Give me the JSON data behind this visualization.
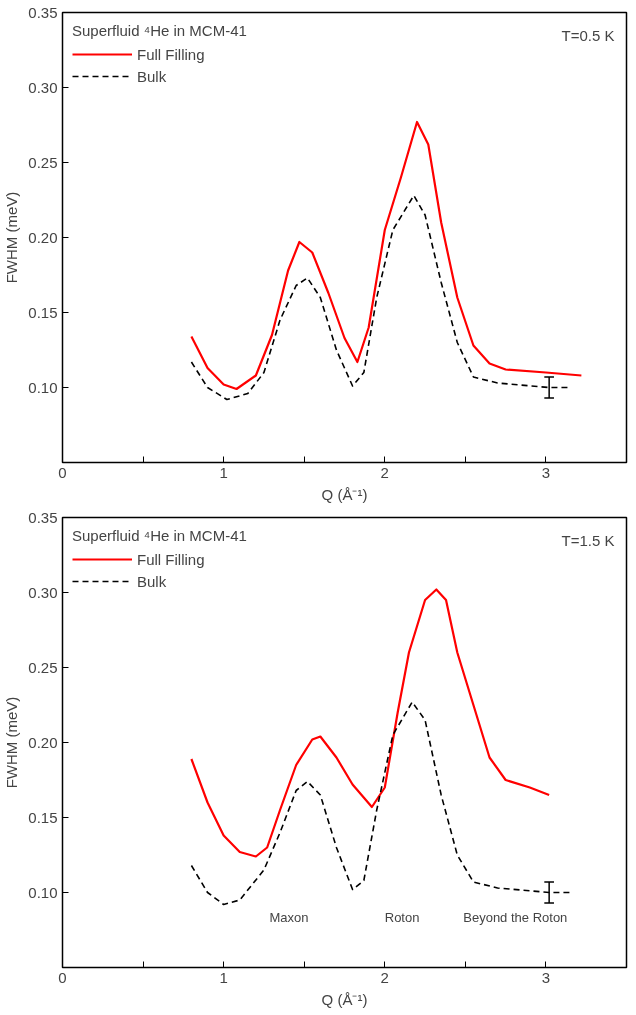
{
  "chart_data": [
    {
      "type": "line",
      "xlabel": "Q (Å⁻¹)",
      "ylabel": "FWHM (meV)",
      "legend_title": "Superfluid ⁴He in MCM-41",
      "legend": "top left",
      "grid": false,
      "marker": "none",
      "xlim": [
        0,
        3.5
      ],
      "xticks": [
        0,
        {
          "value": 0.5,
          "label": null
        },
        1,
        {
          "value": 1.5,
          "label": null
        },
        2,
        {
          "value": 2.5,
          "label": null
        },
        3,
        {
          "value": 3.5,
          "label": null
        }
      ],
      "ylim": [
        0.05,
        0.35
      ],
      "yticks": [
        {
          "value": 0.05,
          "label": null
        },
        {
          "value": 0.1,
          "label": "0.10"
        },
        0.15,
        {
          "value": 0.2,
          "label": "0.20"
        },
        0.25,
        {
          "value": 0.3,
          "label": "0.30"
        },
        0.35
      ],
      "annotations": [
        "T=0.5 K"
      ],
      "series": [
        {
          "name": "Full Filling",
          "color": "#ff0000",
          "line_style": "solid",
          "x": [
            0.8,
            0.9,
            1.0,
            1.08,
            1.2,
            1.3,
            1.4,
            1.47,
            1.55,
            1.65,
            1.75,
            1.83,
            1.9,
            2.0,
            2.1,
            2.2,
            2.27,
            2.35,
            2.45,
            2.55,
            2.65,
            2.75,
            3.0,
            3.22
          ],
          "values": [
            0.134,
            0.113,
            0.102,
            0.099,
            0.108,
            0.135,
            0.178,
            0.197,
            0.19,
            0.163,
            0.133,
            0.117,
            0.14,
            0.205,
            0.24,
            0.277,
            0.262,
            0.21,
            0.16,
            0.128,
            0.116,
            0.112,
            0.11,
            0.108
          ]
        },
        {
          "name": "Bulk",
          "color": "#000000",
          "line_style": "dashed",
          "x": [
            0.8,
            0.9,
            1.02,
            1.15,
            1.25,
            1.35,
            1.45,
            1.52,
            1.6,
            1.7,
            1.8,
            1.87,
            1.95,
            2.05,
            2.18,
            2.25,
            2.35,
            2.45,
            2.55,
            2.7,
            3.02,
            3.15
          ],
          "values": [
            0.117,
            0.1,
            0.092,
            0.096,
            0.11,
            0.145,
            0.168,
            0.173,
            0.16,
            0.125,
            0.101,
            0.11,
            0.16,
            0.205,
            0.228,
            0.215,
            0.17,
            0.13,
            0.107,
            0.103,
            0.1,
            0.1
          ],
          "errors": [
            null,
            null,
            null,
            null,
            null,
            null,
            null,
            null,
            null,
            null,
            null,
            null,
            null,
            null,
            null,
            null,
            null,
            null,
            null,
            null,
            0.007,
            null
          ]
        }
      ]
    },
    {
      "type": "line",
      "xlabel": "Q (Å⁻¹)",
      "ylabel": "FWHM (meV)",
      "legend_title": "Superfluid ⁴He in MCM-41",
      "legend": "top left",
      "grid": false,
      "marker": "none",
      "xlim": [
        0,
        3.5
      ],
      "xticks": [
        0,
        {
          "value": 0.5,
          "label": null
        },
        1,
        {
          "value": 1.5,
          "label": null
        },
        2,
        {
          "value": 2.5,
          "label": null
        },
        3,
        {
          "value": 3.5,
          "label": null
        }
      ],
      "ylim": [
        0.05,
        0.35
      ],
      "yticks": [
        {
          "value": 0.05,
          "label": null
        },
        {
          "value": 0.1,
          "label": "0.10"
        },
        0.15,
        {
          "value": 0.2,
          "label": "0.20"
        },
        0.25,
        {
          "value": 0.3,
          "label": "0.30"
        },
        0.35
      ],
      "annotations": [
        "T=1.5 K",
        "Maxon",
        "Roton",
        "Beyond the Roton"
      ],
      "series": [
        {
          "name": "Full Filling",
          "color": "#ff0000",
          "line_style": "solid",
          "x": [
            0.8,
            0.9,
            1.0,
            1.1,
            1.2,
            1.27,
            1.35,
            1.45,
            1.55,
            1.6,
            1.7,
            1.8,
            1.92,
            2.0,
            2.08,
            2.15,
            2.25,
            2.32,
            2.38,
            2.45,
            2.55,
            2.65,
            2.75,
            2.9,
            3.02
          ],
          "values": [
            0.189,
            0.16,
            0.138,
            0.127,
            0.124,
            0.13,
            0.155,
            0.185,
            0.202,
            0.204,
            0.19,
            0.172,
            0.157,
            0.17,
            0.22,
            0.26,
            0.295,
            0.302,
            0.295,
            0.26,
            0.225,
            0.19,
            0.175,
            0.17,
            0.165
          ]
        },
        {
          "name": "Bulk",
          "color": "#000000",
          "line_style": "dashed",
          "x": [
            0.8,
            0.9,
            1.0,
            1.1,
            1.25,
            1.35,
            1.45,
            1.52,
            1.6,
            1.7,
            1.8,
            1.87,
            1.95,
            2.05,
            2.17,
            2.25,
            2.35,
            2.45,
            2.55,
            2.7,
            3.02,
            3.15
          ],
          "values": [
            0.118,
            0.1,
            0.092,
            0.095,
            0.115,
            0.14,
            0.168,
            0.174,
            0.165,
            0.13,
            0.102,
            0.108,
            0.155,
            0.205,
            0.227,
            0.215,
            0.165,
            0.125,
            0.107,
            0.103,
            0.1,
            0.1
          ],
          "errors": [
            null,
            null,
            null,
            null,
            null,
            null,
            null,
            null,
            null,
            null,
            null,
            null,
            null,
            null,
            null,
            null,
            null,
            null,
            null,
            null,
            0.007,
            null
          ]
        }
      ]
    }
  ]
}
